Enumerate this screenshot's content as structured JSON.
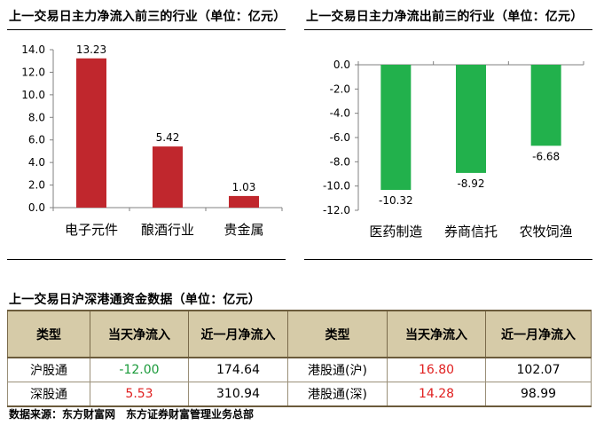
{
  "left_panel": {
    "title": "上一交易日主力净流入前三的行业（单位：亿元）"
  },
  "right_panel": {
    "title": "上一交易日主力净流出前三的行业（单位：亿元）"
  },
  "table_section": {
    "title": "上一交易日沪深港通资金数据（单位：亿元）"
  },
  "chart_data": [
    {
      "type": "bar",
      "title": "上一交易日主力净流入前三的行业（单位：亿元）",
      "categories": [
        "电子元件",
        "酿酒行业",
        "贵金属"
      ],
      "values": [
        13.23,
        5.42,
        1.03
      ],
      "value_labels": [
        "13.23",
        "5.42",
        "1.03"
      ],
      "yticks": [
        "0.0",
        "2.0",
        "4.0",
        "6.0",
        "8.0",
        "10.0",
        "12.0",
        "14.0"
      ],
      "ylim": [
        0,
        14
      ],
      "grid": false,
      "color": "#c0272d"
    },
    {
      "type": "bar",
      "title": "上一交易日主力净流出前三的行业（单位：亿元）",
      "categories": [
        "医药制造",
        "券商信托",
        "农牧饲渔"
      ],
      "values": [
        -10.32,
        -8.92,
        -6.68
      ],
      "value_labels": [
        "-10.32",
        "-8.92",
        "-6.68"
      ],
      "yticks": [
        "0.0",
        "-2.0",
        "-4.0",
        "-6.0",
        "-8.0",
        "-10.0",
        "-12.0"
      ],
      "ylim": [
        -12,
        0
      ],
      "grid": false,
      "color": "#22b14c"
    }
  ],
  "table": {
    "headers": [
      "类型",
      "当天净流入",
      "近一月净流入",
      "类型",
      "当天净流入",
      "近一月净流入"
    ],
    "rows": [
      [
        "沪股通",
        "-12.00",
        "174.64",
        "港股通(沪)",
        "16.80",
        "102.07"
      ],
      [
        "深股通",
        "5.53",
        "310.94",
        "港股通(深)",
        "14.28",
        "98.99"
      ]
    ],
    "value_colors": {
      "negative": "#1a9a3a",
      "positive": "#e02020"
    }
  },
  "source": "数据来源：东方财富网　东方证券财富管理业务总部"
}
